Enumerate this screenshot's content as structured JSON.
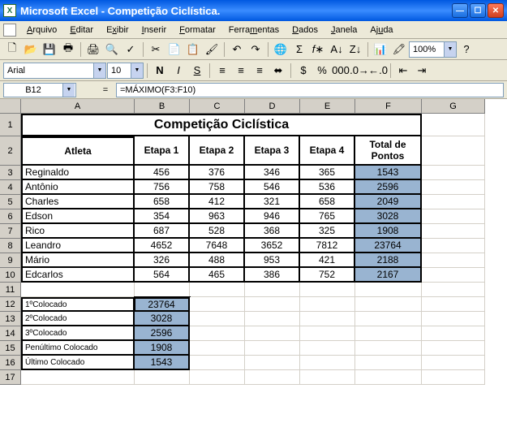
{
  "window": {
    "title": "Microsoft Excel - Competição Ciclística."
  },
  "menu": {
    "items": [
      "Arquivo",
      "Editar",
      "Exibir",
      "Inserir",
      "Formatar",
      "Ferramentas",
      "Dados",
      "Janela",
      "Ajuda"
    ]
  },
  "format": {
    "font_name": "Arial",
    "font_size": "10",
    "zoom": "100%"
  },
  "namebox": "B12",
  "formula": "=MÁXIMO(F3:F10)",
  "columns": [
    "A",
    "B",
    "C",
    "D",
    "E",
    "F",
    "G"
  ],
  "table": {
    "title": "Competição Ciclística",
    "headers": [
      "Atleta",
      "Etapa 1",
      "Etapa 2",
      "Etapa 3",
      "Etapa 4",
      "Total de Pontos"
    ],
    "rows": [
      {
        "atleta": "Reginaldo",
        "e": [
          456,
          376,
          346,
          365
        ],
        "total": 1543
      },
      {
        "atleta": "Antônio",
        "e": [
          756,
          758,
          546,
          536
        ],
        "total": 2596
      },
      {
        "atleta": "Charles",
        "e": [
          658,
          412,
          321,
          658
        ],
        "total": 2049
      },
      {
        "atleta": "Edson",
        "e": [
          354,
          963,
          946,
          765
        ],
        "total": 3028
      },
      {
        "atleta": "Rico",
        "e": [
          687,
          528,
          368,
          325
        ],
        "total": 1908
      },
      {
        "atleta": "Leandro",
        "e": [
          4652,
          7648,
          3652,
          7812
        ],
        "total": 23764
      },
      {
        "atleta": "Mário",
        "e": [
          326,
          488,
          953,
          421
        ],
        "total": 2188
      },
      {
        "atleta": "Edcarlos",
        "e": [
          564,
          465,
          386,
          752
        ],
        "total": 2167
      }
    ]
  },
  "ranking": [
    {
      "label": "1ºColocado",
      "value": 23764
    },
    {
      "label": "2ºColocado",
      "value": 3028
    },
    {
      "label": "3ºColocado",
      "value": 2596
    },
    {
      "label": "Penúltimo Colocado",
      "value": 1908
    },
    {
      "label": "Último Colocado",
      "value": 1543
    }
  ],
  "colors": {
    "highlight": "#99b4d1",
    "header_bg": "#d4d0c8",
    "titlebar_blue": "#0058e0"
  }
}
